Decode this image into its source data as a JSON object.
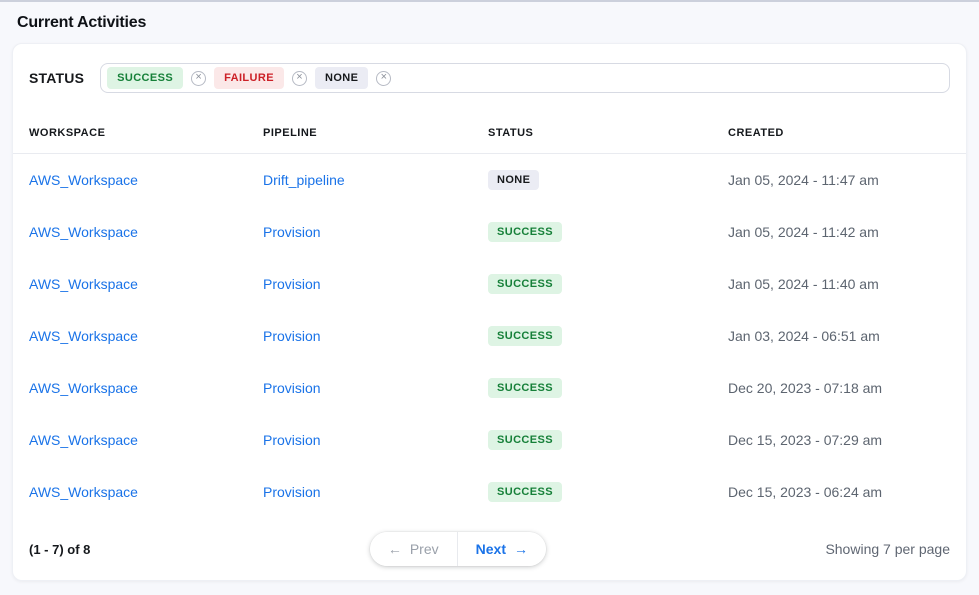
{
  "page": {
    "title": "Current Activities"
  },
  "filter": {
    "label": "STATUS",
    "remove_icon": "×",
    "chips": [
      {
        "label": "SUCCESS",
        "type": "success"
      },
      {
        "label": "FAILURE",
        "type": "failure"
      },
      {
        "label": "NONE",
        "type": "none"
      }
    ]
  },
  "table": {
    "columns": [
      "WORKSPACE",
      "PIPELINE",
      "STATUS",
      "CREATED"
    ],
    "rows": [
      {
        "workspace": "AWS_Workspace",
        "pipeline": "Drift_pipeline",
        "status": "NONE",
        "status_type": "none",
        "created": "Jan 05, 2024 - 11:47 am"
      },
      {
        "workspace": "AWS_Workspace",
        "pipeline": "Provision",
        "status": "SUCCESS",
        "status_type": "success",
        "created": "Jan 05, 2024 - 11:42 am"
      },
      {
        "workspace": "AWS_Workspace",
        "pipeline": "Provision",
        "status": "SUCCESS",
        "status_type": "success",
        "created": "Jan 05, 2024 - 11:40 am"
      },
      {
        "workspace": "AWS_Workspace",
        "pipeline": "Provision",
        "status": "SUCCESS",
        "status_type": "success",
        "created": "Jan 03, 2024 - 06:51 am"
      },
      {
        "workspace": "AWS_Workspace",
        "pipeline": "Provision",
        "status": "SUCCESS",
        "status_type": "success",
        "created": "Dec 20, 2023 - 07:18 am"
      },
      {
        "workspace": "AWS_Workspace",
        "pipeline": "Provision",
        "status": "SUCCESS",
        "status_type": "success",
        "created": "Dec 15, 2023 - 07:29 am"
      },
      {
        "workspace": "AWS_Workspace",
        "pipeline": "Provision",
        "status": "SUCCESS",
        "status_type": "success",
        "created": "Dec 15, 2023 - 06:24 am"
      }
    ]
  },
  "pagination": {
    "range_text": "(1 - 7) of 8",
    "prev_arrow": "←",
    "prev_label": "Prev",
    "next_label": "Next",
    "next_arrow": "→",
    "per_page_text": "Showing 7 per page"
  },
  "colors": {
    "link_blue": "#1a73e8",
    "success_text": "#168039",
    "success_bg": "#def4e4",
    "failure_text": "#cc2027",
    "failure_bg": "#fbe8e8",
    "none_text": "#17191c",
    "none_bg": "#ebecf4",
    "page_bg": "#f7f8fc",
    "card_bg": "#ffffff"
  }
}
